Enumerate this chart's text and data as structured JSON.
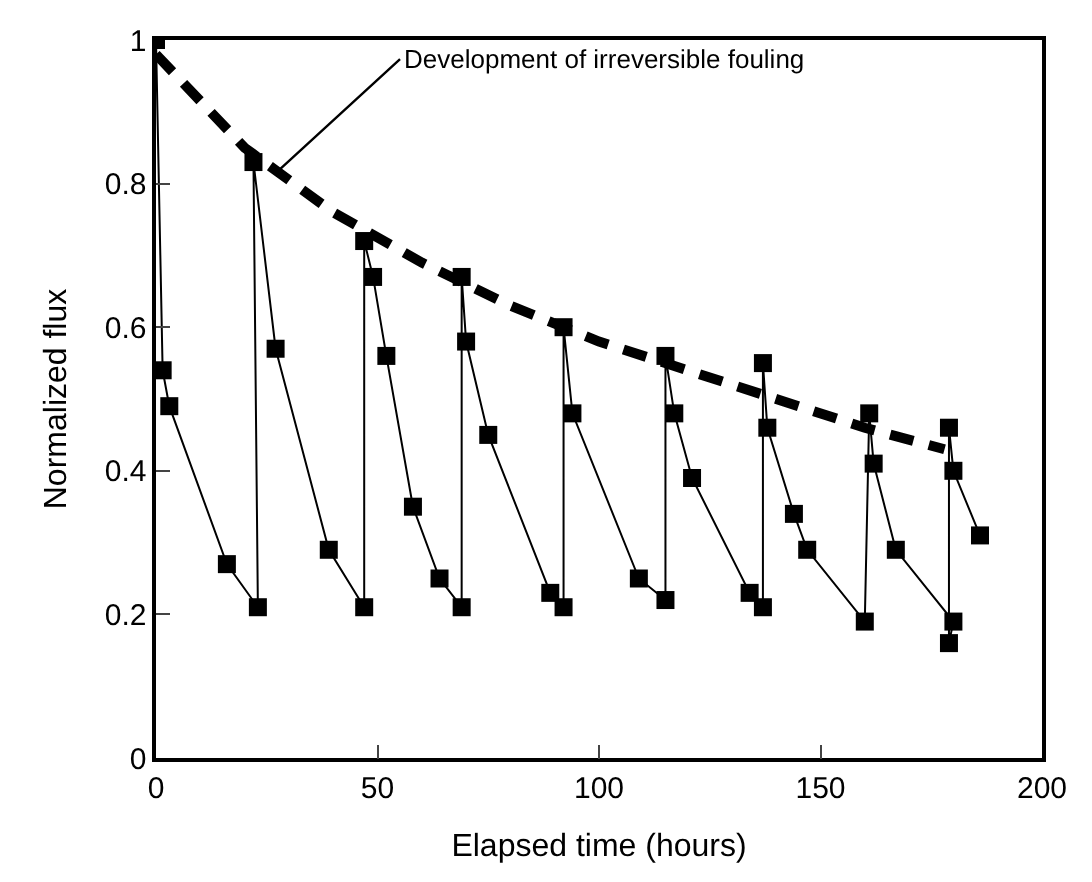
{
  "chart_data": {
    "type": "line",
    "xlabel": "Elapsed time (hours)",
    "ylabel": "Normalized flux",
    "xlim": [
      0,
      200
    ],
    "xticks": [
      0,
      50,
      100,
      150,
      200
    ],
    "ylim": [
      0,
      1
    ],
    "yticks": [
      0,
      0.2,
      0.4,
      0.6,
      0.8,
      1
    ],
    "series": [
      {
        "color": "#000000",
        "marker": "square",
        "line_style": "solid",
        "x": [
          0,
          1.5,
          3,
          16,
          23,
          22,
          27,
          39,
          47,
          47,
          49,
          52,
          58,
          64,
          69,
          69,
          70,
          75,
          89,
          92,
          92,
          94,
          109,
          115,
          115,
          117,
          121,
          134,
          137,
          137,
          138,
          144,
          147,
          160,
          161,
          162,
          167,
          180,
          179,
          179,
          180,
          186
        ],
        "values": [
          1.0,
          0.54,
          0.49,
          0.27,
          0.21,
          0.83,
          0.57,
          0.29,
          0.21,
          0.72,
          0.67,
          0.56,
          0.35,
          0.25,
          0.21,
          0.67,
          0.58,
          0.45,
          0.23,
          0.21,
          0.6,
          0.48,
          0.25,
          0.22,
          0.56,
          0.48,
          0.39,
          0.23,
          0.21,
          0.55,
          0.46,
          0.34,
          0.29,
          0.19,
          0.48,
          0.41,
          0.29,
          0.19,
          0.16,
          0.46,
          0.4,
          0.31
        ]
      },
      {
        "color": "#000000",
        "marker": "none",
        "line_style": "dashed",
        "x": [
          0,
          20,
          40,
          60,
          80,
          100,
          120,
          140,
          160,
          178
        ],
        "values": [
          0.98,
          0.85,
          0.76,
          0.69,
          0.63,
          0.58,
          0.54,
          0.5,
          0.46,
          0.43
        ]
      }
    ],
    "annotations": [
      {
        "text": "Development of irreversible fouling",
        "x": 28,
        "y": 0.82
      }
    ]
  }
}
